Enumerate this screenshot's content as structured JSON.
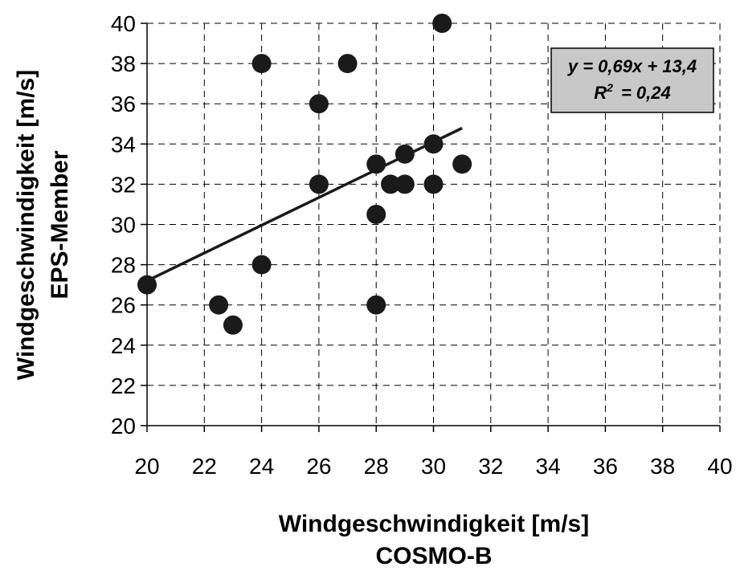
{
  "chart_data": {
    "type": "scatter",
    "xlabel": [
      "Windgeschwindigkeit [m/s]",
      "COSMO-B"
    ],
    "ylabel": [
      "Windgeschwindigkeit [m/s]",
      "EPS-Member"
    ],
    "xlim": [
      20,
      40
    ],
    "ylim": [
      20,
      40
    ],
    "x_ticks": [
      20,
      22,
      24,
      26,
      28,
      30,
      32,
      34,
      36,
      38,
      40
    ],
    "y_ticks": [
      20,
      22,
      24,
      26,
      28,
      30,
      32,
      34,
      36,
      38,
      40
    ],
    "grid": true,
    "points": [
      {
        "x": 20,
        "y": 27
      },
      {
        "x": 22.5,
        "y": 26
      },
      {
        "x": 23,
        "y": 25
      },
      {
        "x": 24,
        "y": 38
      },
      {
        "x": 24,
        "y": 28
      },
      {
        "x": 26,
        "y": 36
      },
      {
        "x": 26,
        "y": 32
      },
      {
        "x": 27,
        "y": 38
      },
      {
        "x": 28,
        "y": 33
      },
      {
        "x": 28,
        "y": 30.5
      },
      {
        "x": 28,
        "y": 26
      },
      {
        "x": 28.5,
        "y": 32
      },
      {
        "x": 29,
        "y": 33.5
      },
      {
        "x": 29,
        "y": 32
      },
      {
        "x": 30,
        "y": 34
      },
      {
        "x": 30,
        "y": 32
      },
      {
        "x": 30.3,
        "y": 40
      },
      {
        "x": 31,
        "y": 33
      }
    ],
    "trendline": {
      "slope": 0.69,
      "intercept": 13.4,
      "x_range": [
        20,
        31
      ]
    },
    "annotation": {
      "equation": "y = 0,69x + 13,4",
      "r2_prefix": "R",
      "r2_sup": "2",
      "r2_value": "= 0,24"
    },
    "colors": {
      "points": "#1a1a1a",
      "trendline": "#1a1a1a",
      "grid": "#000000",
      "annotation_bg": "#c8c8c8"
    }
  }
}
